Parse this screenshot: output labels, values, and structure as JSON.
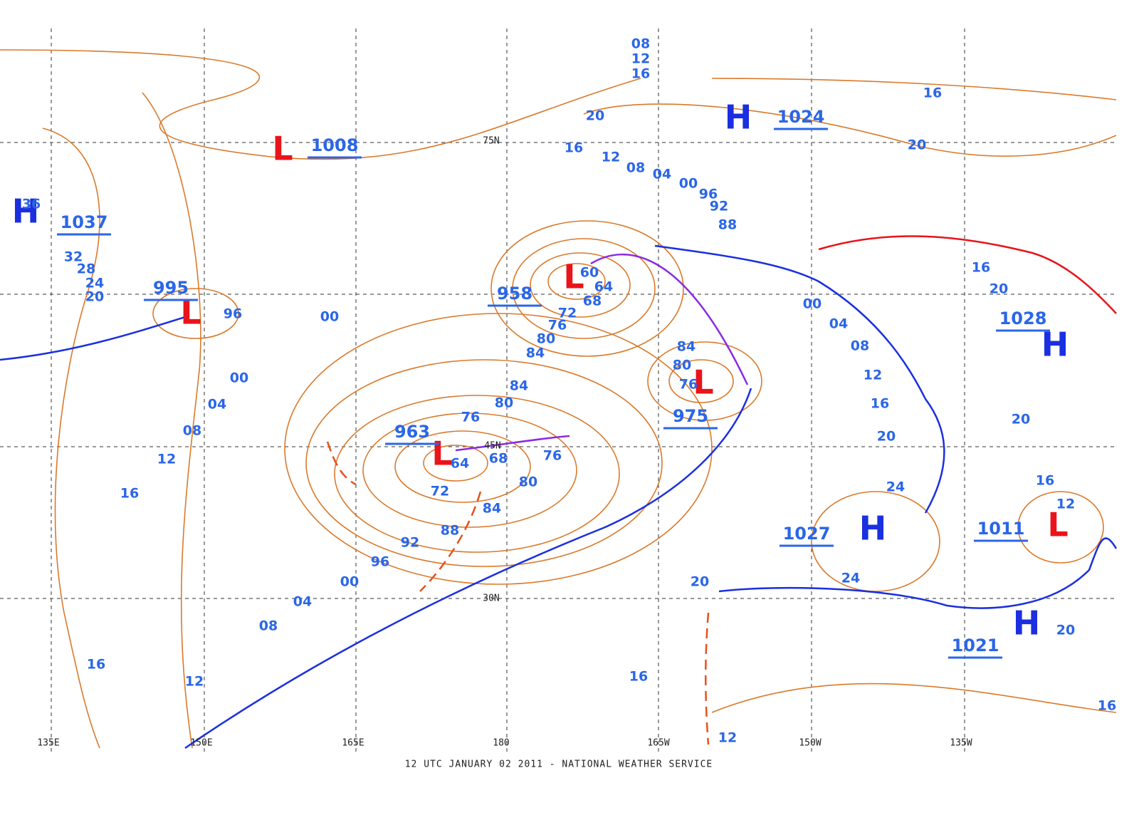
{
  "footer": "12 UTC JANUARY 02 2011 - NATIONAL WEATHER SERVICE",
  "longitude_labels": [
    "135E",
    "150E",
    "165E",
    "180",
    "165W",
    "150W",
    "135W"
  ],
  "latitude_labels": [
    "75N",
    "45N",
    "30N"
  ],
  "pressure_centers": [
    {
      "symbol": "L",
      "value": "1008"
    },
    {
      "symbol": "H",
      "value": "1037"
    },
    {
      "symbol": "L",
      "value": "995"
    },
    {
      "symbol": "L",
      "value": "958"
    },
    {
      "symbol": "L",
      "value": "963"
    },
    {
      "symbol": "L",
      "value": "975"
    },
    {
      "symbol": "H",
      "value": "1024"
    },
    {
      "symbol": "H",
      "value": "1028"
    },
    {
      "symbol": "H",
      "value": "1027"
    },
    {
      "symbol": "L",
      "value": "1011"
    },
    {
      "symbol": "H",
      "value": "1021"
    }
  ],
  "isobar_labels": [
    "08",
    "12",
    "16",
    "20",
    "16",
    "20",
    "16",
    "12",
    "08",
    "04",
    "00",
    "96",
    "92",
    "88",
    "36",
    "32",
    "28",
    "24",
    "20",
    "96",
    "00",
    "00",
    "04",
    "08",
    "12",
    "16",
    "60",
    "64",
    "68",
    "72",
    "76",
    "80",
    "84",
    "84",
    "80",
    "76",
    "84",
    "80",
    "76",
    "76",
    "68",
    "64",
    "72",
    "80",
    "84",
    "88",
    "92",
    "96",
    "00",
    "04",
    "08",
    "16",
    "12",
    "00",
    "04",
    "08",
    "12",
    "16",
    "20",
    "24",
    "20",
    "24",
    "16",
    "12",
    "20",
    "20",
    "16",
    "16",
    "12",
    "20",
    "16"
  ]
}
